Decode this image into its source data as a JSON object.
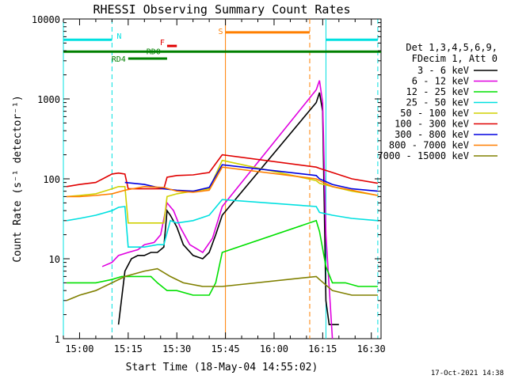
{
  "chart_data": {
    "type": "line",
    "title": "RHESSI Observing Summary Count Rates",
    "xlabel": "Start Time (18-May-04 14:55:02)",
    "ylabel": "Count Rate (s⁻¹ detector⁻¹)",
    "yscale": "log",
    "ylim": [
      1,
      10000
    ],
    "xlim": [
      "14:55",
      "16:33"
    ],
    "x_ticks": [
      "15:00",
      "15:15",
      "15:30",
      "15:45",
      "16:00",
      "16:15",
      "16:30"
    ],
    "y_ticks": [
      "1",
      "10",
      "100",
      "1000",
      "10000"
    ],
    "grid": false,
    "legend_position": "right",
    "legend_header": [
      "Det 1,3,4,5,6,9,",
      "FDecim 1, Att 0"
    ],
    "series": [
      {
        "name": "3 - 6 keV",
        "color": "#000000",
        "points": [
          [
            "15:12",
            1.5
          ],
          [
            "15:14",
            7
          ],
          [
            "15:16",
            10
          ],
          [
            "15:18",
            11
          ],
          [
            "15:20",
            11
          ],
          [
            "15:22",
            12
          ],
          [
            "15:24",
            12
          ],
          [
            "15:26",
            14
          ],
          [
            "15:27",
            40
          ],
          [
            "15:28",
            35
          ],
          [
            "15:30",
            25
          ],
          [
            "15:32",
            15
          ],
          [
            "15:35",
            11
          ],
          [
            "15:38",
            10
          ],
          [
            "15:40",
            12
          ],
          [
            "15:42",
            20
          ],
          [
            "15:44",
            35
          ],
          [
            "16:13",
            900
          ],
          [
            "16:14",
            1200
          ],
          [
            "16:15",
            700
          ],
          [
            "16:16",
            3
          ],
          [
            "16:17",
            1.5
          ],
          [
            "16:20",
            1.5
          ]
        ]
      },
      {
        "name": "6 - 12 keV",
        "color": "#e000e0",
        "points": [
          [
            "15:07",
            8
          ],
          [
            "15:10",
            9
          ],
          [
            "15:12",
            11
          ],
          [
            "15:15",
            12
          ],
          [
            "15:18",
            13
          ],
          [
            "15:20",
            15
          ],
          [
            "15:23",
            16
          ],
          [
            "15:25",
            20
          ],
          [
            "15:27",
            50
          ],
          [
            "15:29",
            40
          ],
          [
            "15:31",
            25
          ],
          [
            "15:34",
            15
          ],
          [
            "15:38",
            12
          ],
          [
            "15:41",
            18
          ],
          [
            "15:44",
            45
          ],
          [
            "16:13",
            1300
          ],
          [
            "16:14",
            1700
          ],
          [
            "16:15",
            900
          ],
          [
            "16:16",
            20
          ],
          [
            "16:18",
            1
          ]
        ]
      },
      {
        "name": "12 - 25 keV",
        "color": "#00e000",
        "points": [
          [
            "14:56",
            5
          ],
          [
            "15:00",
            5
          ],
          [
            "15:05",
            5
          ],
          [
            "15:10",
            5.5
          ],
          [
            "15:13",
            6
          ],
          [
            "15:18",
            6
          ],
          [
            "15:22",
            6
          ],
          [
            "15:24",
            5
          ],
          [
            "15:27",
            4
          ],
          [
            "15:30",
            4
          ],
          [
            "15:35",
            3.5
          ],
          [
            "15:40",
            3.5
          ],
          [
            "15:42",
            5
          ],
          [
            "15:44",
            12
          ],
          [
            "16:13",
            30
          ],
          [
            "16:14",
            22
          ],
          [
            "16:16",
            8
          ],
          [
            "16:18",
            5
          ],
          [
            "16:22",
            5
          ],
          [
            "16:26",
            4.5
          ],
          [
            "16:32",
            4.5
          ]
        ]
      },
      {
        "name": "25 - 50 keV",
        "color": "#00e0e0",
        "points": [
          [
            "14:56",
            30
          ],
          [
            "15:00",
            32
          ],
          [
            "15:05",
            35
          ],
          [
            "15:10",
            40
          ],
          [
            "15:12",
            44
          ],
          [
            "15:14",
            45
          ],
          [
            "15:15",
            14
          ],
          [
            "15:20",
            14
          ],
          [
            "15:24",
            15
          ],
          [
            "15:26",
            15
          ],
          [
            "15:28",
            30
          ],
          [
            "15:30",
            28
          ],
          [
            "15:35",
            30
          ],
          [
            "15:40",
            35
          ],
          [
            "15:44",
            55
          ],
          [
            "16:13",
            45
          ],
          [
            "16:14",
            38
          ],
          [
            "16:18",
            35
          ],
          [
            "16:24",
            32
          ],
          [
            "16:32",
            30
          ]
        ]
      },
      {
        "name": "50 - 100 keV",
        "color": "#d0d000",
        "points": [
          [
            "14:56",
            60
          ],
          [
            "15:00",
            62
          ],
          [
            "15:05",
            65
          ],
          [
            "15:10",
            75
          ],
          [
            "15:12",
            80
          ],
          [
            "15:14",
            80
          ],
          [
            "15:15",
            28
          ],
          [
            "15:20",
            28
          ],
          [
            "15:26",
            28
          ],
          [
            "15:27",
            60
          ],
          [
            "15:30",
            65
          ],
          [
            "15:35",
            70
          ],
          [
            "15:40",
            75
          ],
          [
            "15:44",
            170
          ],
          [
            "16:13",
            95
          ],
          [
            "16:14",
            88
          ],
          [
            "16:18",
            80
          ],
          [
            "16:24",
            70
          ],
          [
            "16:32",
            62
          ]
        ]
      },
      {
        "name": "100 - 300 keV",
        "color": "#e00000",
        "points": [
          [
            "14:56",
            80
          ],
          [
            "15:00",
            85
          ],
          [
            "15:05",
            90
          ],
          [
            "15:10",
            115
          ],
          [
            "15:12",
            118
          ],
          [
            "15:14",
            115
          ],
          [
            "15:15",
            75
          ],
          [
            "15:20",
            75
          ],
          [
            "15:26",
            75
          ],
          [
            "15:27",
            105
          ],
          [
            "15:30",
            110
          ],
          [
            "15:35",
            112
          ],
          [
            "15:40",
            120
          ],
          [
            "15:44",
            200
          ],
          [
            "16:13",
            140
          ],
          [
            "16:14",
            135
          ],
          [
            "16:18",
            120
          ],
          [
            "16:24",
            100
          ],
          [
            "16:32",
            88
          ]
        ]
      },
      {
        "name": "300 - 800 keV",
        "color": "#0000e0",
        "points": [
          [
            "15:14",
            90
          ],
          [
            "15:20",
            85
          ],
          [
            "15:26",
            75
          ],
          [
            "15:30",
            72
          ],
          [
            "15:35",
            70
          ],
          [
            "15:40",
            78
          ],
          [
            "15:44",
            150
          ],
          [
            "16:13",
            110
          ],
          [
            "16:14",
            100
          ],
          [
            "16:18",
            85
          ],
          [
            "16:24",
            75
          ],
          [
            "16:32",
            70
          ]
        ]
      },
      {
        "name": "800 - 7000 keV",
        "color": "#ff7f00",
        "points": [
          [
            "14:56",
            60
          ],
          [
            "15:00",
            60
          ],
          [
            "15:05",
            62
          ],
          [
            "15:10",
            65
          ],
          [
            "15:14",
            72
          ],
          [
            "15:20",
            80
          ],
          [
            "15:26",
            78
          ],
          [
            "15:30",
            70
          ],
          [
            "15:35",
            68
          ],
          [
            "15:40",
            72
          ],
          [
            "15:44",
            140
          ],
          [
            "16:13",
            100
          ],
          [
            "16:14",
            95
          ],
          [
            "16:18",
            80
          ],
          [
            "16:24",
            72
          ],
          [
            "16:32",
            62
          ]
        ]
      },
      {
        "name": "7000 - 15000 keV",
        "color": "#808000",
        "points": [
          [
            "14:56",
            3
          ],
          [
            "15:00",
            3.5
          ],
          [
            "15:05",
            4
          ],
          [
            "15:10",
            5
          ],
          [
            "15:14",
            6
          ],
          [
            "15:20",
            7
          ],
          [
            "15:24",
            7.5
          ],
          [
            "15:28",
            6
          ],
          [
            "15:32",
            5
          ],
          [
            "15:38",
            4.5
          ],
          [
            "15:44",
            4.5
          ],
          [
            "16:13",
            6
          ],
          [
            "16:14",
            5.5
          ],
          [
            "16:18",
            4
          ],
          [
            "16:24",
            3.5
          ],
          [
            "16:32",
            3.5
          ]
        ]
      }
    ],
    "flags": [
      {
        "label": "N",
        "color": "#00e0e0",
        "y": 5500,
        "segments": [
          [
            "14:55",
            "15:10"
          ],
          [
            "16:16",
            "16:32"
          ]
        ]
      },
      {
        "label": "F",
        "color": "#e00000",
        "y": 4600,
        "segments": [
          [
            "15:27",
            "15:30"
          ]
        ]
      },
      {
        "label": "RD0",
        "color": "#008000",
        "y": 3900,
        "segments": [
          [
            "14:55",
            "16:33"
          ]
        ]
      },
      {
        "label": "RD4",
        "color": "#008000",
        "y": 3200,
        "segments": [
          [
            "15:15",
            "15:27"
          ]
        ]
      },
      {
        "label": "S",
        "color": "#ff7f00",
        "y": 6800,
        "segments": [
          [
            "15:45",
            "16:11"
          ]
        ]
      }
    ],
    "vertical_lines": [
      {
        "t": "14:55",
        "color": "#00e0e0",
        "style": "solid"
      },
      {
        "t": "15:10",
        "color": "#00e0e0",
        "style": "dashed"
      },
      {
        "t": "15:45",
        "color": "#ff7f00",
        "style": "solid"
      },
      {
        "t": "16:11",
        "color": "#ff7f00",
        "style": "dashed"
      },
      {
        "t": "16:16",
        "color": "#00e0e0",
        "style": "solid"
      },
      {
        "t": "16:32",
        "color": "#00e0e0",
        "style": "dashed"
      }
    ]
  },
  "footer_date": "17-Oct-2021 14:38"
}
